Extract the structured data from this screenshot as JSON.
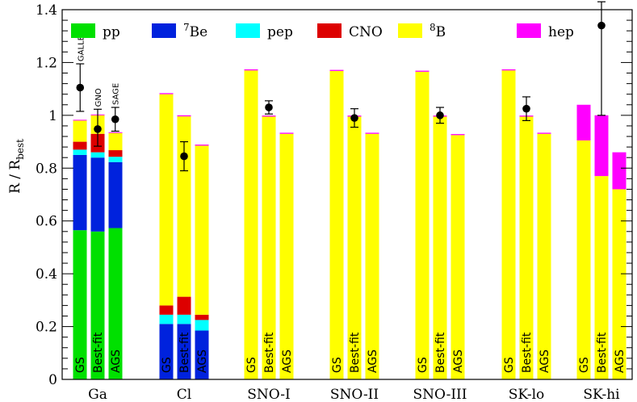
{
  "chart_data": {
    "type": "bar",
    "stacked": true,
    "ylabel_main": "R / R",
    "ylabel_sub": "best",
    "ylim": [
      0,
      1.4
    ],
    "yticks": [
      0,
      0.2,
      0.4,
      0.6,
      0.8,
      1,
      1.2,
      1.4
    ],
    "ytick_labels": [
      "0",
      "0.2",
      "0.4",
      "0.6",
      "0.8",
      "1",
      "1.2",
      "1.4"
    ],
    "legend": [
      {
        "key": "pp",
        "label": "pp",
        "sup": "",
        "color": "#00e000"
      },
      {
        "key": "be7",
        "label": "Be",
        "sup": "7",
        "color": "#0022dd"
      },
      {
        "key": "pep",
        "label": "pep",
        "sup": "",
        "color": "#00ffff"
      },
      {
        "key": "cno",
        "label": "CNO",
        "sup": "",
        "color": "#dd0000"
      },
      {
        "key": "b8",
        "label": "B",
        "sup": "8",
        "color": "#ffff00"
      },
      {
        "key": "hep",
        "label": "hep",
        "sup": "",
        "color": "#ff00ff"
      }
    ],
    "groups": [
      {
        "name": "Ga",
        "bars": [
          {
            "label": "GS",
            "pp": 0.565,
            "be7": 0.285,
            "pep": 0.02,
            "cno": 0.03,
            "b8": 0.08,
            "hep": 0.003
          },
          {
            "label": "Best-fit",
            "pp": 0.56,
            "be7": 0.28,
            "pep": 0.02,
            "cno": 0.07,
            "b8": 0.07,
            "hep": 0.003
          },
          {
            "label": "AGS",
            "pp": 0.573,
            "be7": 0.25,
            "pep": 0.02,
            "cno": 0.025,
            "b8": 0.065,
            "hep": 0.003
          }
        ]
      },
      {
        "name": "Cl",
        "bars": [
          {
            "label": "GS",
            "pp": 0,
            "be7": 0.21,
            "pep": 0.035,
            "cno": 0.035,
            "b8": 0.8,
            "hep": 0.004
          },
          {
            "label": "Best-fit",
            "pp": 0,
            "be7": 0.21,
            "pep": 0.035,
            "cno": 0.068,
            "b8": 0.683,
            "hep": 0.004
          },
          {
            "label": "AGS",
            "pp": 0,
            "be7": 0.185,
            "pep": 0.04,
            "cno": 0.02,
            "b8": 0.64,
            "hep": 0.004
          }
        ]
      },
      {
        "name": "SNO-I",
        "bars": [
          {
            "label": "GS",
            "pp": 0,
            "be7": 0,
            "pep": 0,
            "cno": 0,
            "b8": 1.17,
            "hep": 0.004
          },
          {
            "label": "Best-fit",
            "pp": 0,
            "be7": 0,
            "pep": 0,
            "cno": 0,
            "b8": 0.995,
            "hep": 0.004
          },
          {
            "label": "AGS",
            "pp": 0,
            "be7": 0,
            "pep": 0,
            "cno": 0,
            "b8": 0.93,
            "hep": 0.004
          }
        ]
      },
      {
        "name": "SNO-II",
        "bars": [
          {
            "label": "GS",
            "pp": 0,
            "be7": 0,
            "pep": 0,
            "cno": 0,
            "b8": 1.168,
            "hep": 0.004
          },
          {
            "label": "Best-fit",
            "pp": 0,
            "be7": 0,
            "pep": 0,
            "cno": 0,
            "b8": 0.995,
            "hep": 0.004
          },
          {
            "label": "AGS",
            "pp": 0,
            "be7": 0,
            "pep": 0,
            "cno": 0,
            "b8": 0.93,
            "hep": 0.004
          }
        ]
      },
      {
        "name": "SNO-III",
        "bars": [
          {
            "label": "GS",
            "pp": 0,
            "be7": 0,
            "pep": 0,
            "cno": 0,
            "b8": 1.165,
            "hep": 0.004
          },
          {
            "label": "Best-fit",
            "pp": 0,
            "be7": 0,
            "pep": 0,
            "cno": 0,
            "b8": 0.995,
            "hep": 0.004
          },
          {
            "label": "AGS",
            "pp": 0,
            "be7": 0,
            "pep": 0,
            "cno": 0,
            "b8": 0.925,
            "hep": 0.004
          }
        ]
      },
      {
        "name": "SK-lo",
        "bars": [
          {
            "label": "GS",
            "pp": 0,
            "be7": 0,
            "pep": 0,
            "cno": 0,
            "b8": 1.17,
            "hep": 0.004
          },
          {
            "label": "Best-fit",
            "pp": 0,
            "be7": 0,
            "pep": 0,
            "cno": 0,
            "b8": 0.995,
            "hep": 0.004
          },
          {
            "label": "AGS",
            "pp": 0,
            "be7": 0,
            "pep": 0,
            "cno": 0,
            "b8": 0.93,
            "hep": 0.004
          }
        ]
      },
      {
        "name": "SK-hi",
        "bars": [
          {
            "label": "GS",
            "pp": 0,
            "be7": 0,
            "pep": 0,
            "cno": 0,
            "b8": 0.905,
            "hep": 0.135
          },
          {
            "label": "Best-fit",
            "pp": 0,
            "be7": 0,
            "pep": 0,
            "cno": 0,
            "b8": 0.77,
            "hep": 0.23
          },
          {
            "label": "AGS",
            "pp": 0,
            "be7": 0,
            "pep": 0,
            "cno": 0,
            "b8": 0.72,
            "hep": 0.14
          }
        ]
      }
    ],
    "measurements": [
      {
        "group": 0,
        "x_offset": -0.38,
        "y": 1.105,
        "err_up": 0.09,
        "err_down": 0.09,
        "label": "GALLEX"
      },
      {
        "group": 0,
        "x_offset": 0.0,
        "y": 0.948,
        "err_up": 0.075,
        "err_down": 0.065,
        "label": "GNO"
      },
      {
        "group": 0,
        "x_offset": 0.38,
        "y": 0.985,
        "err_up": 0.045,
        "err_down": 0.045,
        "label": "SAGE"
      },
      {
        "group": 1,
        "x_offset": 0.0,
        "y": 0.845,
        "err_up": 0.055,
        "err_down": 0.055,
        "label": ""
      },
      {
        "group": 2,
        "x_offset": 0.0,
        "y": 1.03,
        "err_up": 0.025,
        "err_down": 0.025,
        "label": ""
      },
      {
        "group": 3,
        "x_offset": 0.0,
        "y": 0.99,
        "err_up": 0.035,
        "err_down": 0.035,
        "label": ""
      },
      {
        "group": 4,
        "x_offset": 0.0,
        "y": 1.0,
        "err_up": 0.03,
        "err_down": 0.03,
        "label": ""
      },
      {
        "group": 5,
        "x_offset": 0.0,
        "y": 1.025,
        "err_up": 0.045,
        "err_down": 0.045,
        "label": ""
      },
      {
        "group": 6,
        "x_offset": 0.0,
        "y": 1.34,
        "err_up": 0.09,
        "err_down": 0.34,
        "label": ""
      }
    ]
  }
}
